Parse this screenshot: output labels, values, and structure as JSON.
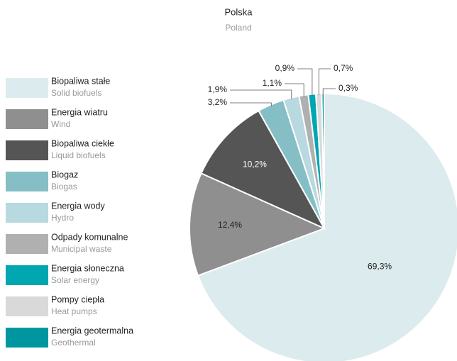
{
  "chart_data": {
    "type": "pie",
    "title": "Polska",
    "subtitle": "Poland",
    "categories": [
      "Biopaliwa stałe",
      "Energia wiatru",
      "Biopaliwa ciekłe",
      "Biogaz",
      "Energia wody",
      "Odpady komunalne",
      "Energia słoneczna",
      "Pompy ciepła",
      "Energia geotermalna"
    ],
    "categories_en": [
      "Solid biofuels",
      "Wind",
      "Liquid biofuels",
      "Biogas",
      "Hydro",
      "Municipal waste",
      "Solar energy",
      "Heat pumps",
      "Geothermal"
    ],
    "values": [
      69.3,
      12.4,
      10.2,
      3.2,
      1.9,
      1.1,
      0.9,
      0.7,
      0.3
    ],
    "value_labels": [
      "69,3%",
      "12,4%",
      "10,2%",
      "3,2%",
      "1,9%",
      "1,1%",
      "0,9%",
      "0,7%",
      "0,3%"
    ],
    "colors": [
      "#dcebee",
      "#8f8f8f",
      "#555555",
      "#85bfc5",
      "#b7d9df",
      "#b0b0b0",
      "#00a6b0",
      "#d9d9d9",
      "#0096a0"
    ]
  }
}
